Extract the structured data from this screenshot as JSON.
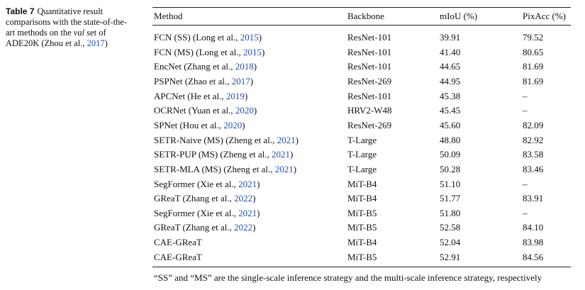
{
  "caption": {
    "label": "Table 7",
    "parts": [
      "Quantitative result comparisons with the state-of-the-art methods on the ",
      "val",
      " set of ADE20K (Zhou et al., ",
      "2017",
      ")"
    ]
  },
  "table": {
    "headers": [
      "Method",
      "Backbone",
      "mIoU (%)",
      "PixAcc (%)"
    ],
    "rows": [
      [
        [
          "FCN (SS) (Long et al., ",
          "2015",
          ")"
        ],
        "ResNet-101",
        "39.91",
        "79.52"
      ],
      [
        [
          "FCN (MS) (Long et al., ",
          "2015",
          ")"
        ],
        "ResNet-101",
        "41.40",
        "80.65"
      ],
      [
        [
          "EncNet (Zhang et al., ",
          "2018",
          ")"
        ],
        "ResNet-101",
        "44.65",
        "81.69"
      ],
      [
        [
          "PSPNet (Zhao et al., ",
          "2017",
          ")"
        ],
        "ResNet-269",
        "44.95",
        "81.69"
      ],
      [
        [
          "APCNet (He et al., ",
          "2019",
          ")"
        ],
        "ResNet-101",
        "45.38",
        "–"
      ],
      [
        [
          "OCRNet (Yuan et al., ",
          "2020",
          ")"
        ],
        "HRV2-W48",
        "45.45",
        "–"
      ],
      [
        [
          "SPNet (Hou et al., ",
          "2020",
          ")"
        ],
        "ResNet-269",
        "45.60",
        "82.09"
      ],
      [
        [
          "SETR-Naive (MS) (Zheng et al., ",
          "2021",
          ")"
        ],
        "T-Large",
        "48.80",
        "82.92"
      ],
      [
        [
          "SETR-PUP (MS) (Zheng et al., ",
          "2021",
          ")"
        ],
        "T-Large",
        "50.09",
        "83.58"
      ],
      [
        [
          "SETR-MLA (MS) (Zheng et al., ",
          "2021",
          ")"
        ],
        "T-Large",
        "50.28",
        "83.46"
      ],
      [
        [
          "SegFormer (Xie et al., ",
          "2021",
          ")"
        ],
        "MiT-B4",
        "51.10",
        "–"
      ],
      [
        [
          "GReaT (Zhang et al., ",
          "2022",
          ")"
        ],
        "MiT-B4",
        "51.77",
        "83.91"
      ],
      [
        [
          "SegFormer (Xie et al., ",
          "2021",
          ")"
        ],
        "MiT-B5",
        "51.80",
        "–"
      ],
      [
        [
          "GReaT (Zhang et al., ",
          "2022",
          ")"
        ],
        "MiT-B5",
        "52.58",
        "84.10"
      ],
      [
        [
          "CAE-GReaT"
        ],
        "MiT-B4",
        "52.04",
        "83.98"
      ],
      [
        [
          "CAE-GReaT"
        ],
        "MiT-B5",
        "52.91",
        "84.56"
      ]
    ]
  },
  "footnote": "“SS” and “MS” are the single-scale inference strategy and the multi-scale inference strategy, respectively"
}
